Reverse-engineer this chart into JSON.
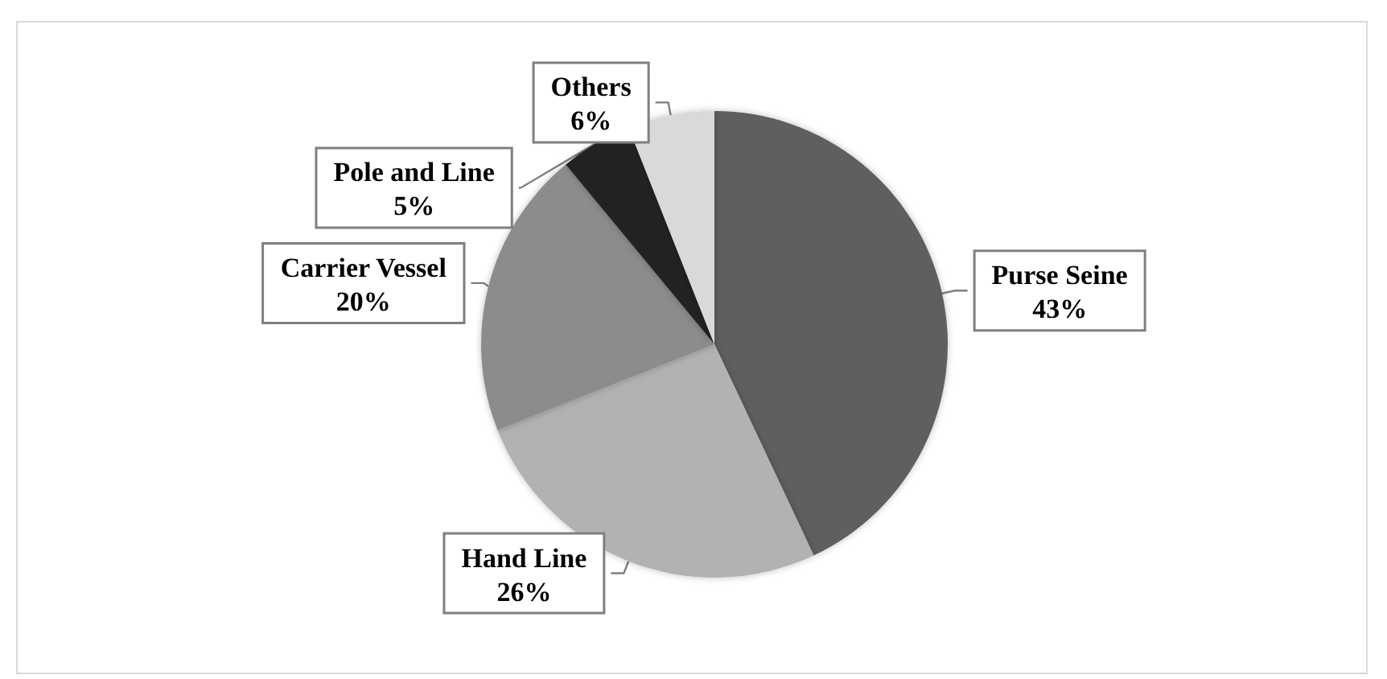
{
  "chart_data": {
    "type": "pie",
    "categories": [
      "Purse Seine",
      "Hand Line",
      "Carrier Vessel",
      "Pole and Line",
      "Others"
    ],
    "values": [
      43,
      26,
      20,
      5,
      6
    ],
    "colors": [
      "#5f5f5f",
      "#b2b2b2",
      "#8c8c8c",
      "#232323",
      "#d9d9d9"
    ],
    "value_labels": [
      "43%",
      "26%",
      "20%",
      "5%",
      "6%"
    ]
  }
}
